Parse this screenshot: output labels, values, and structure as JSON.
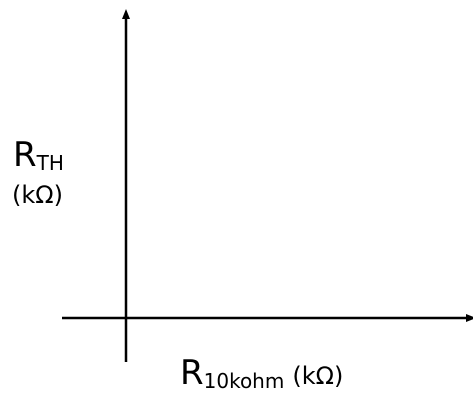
{
  "chart_data": {
    "type": "line",
    "series": [],
    "ylabel": {
      "main": "R",
      "sub": "TH",
      "unit": "(kΩ)"
    },
    "xlabel": {
      "main": "R",
      "sub": "10kohm",
      "unit": "(kΩ)"
    },
    "grid": false
  }
}
